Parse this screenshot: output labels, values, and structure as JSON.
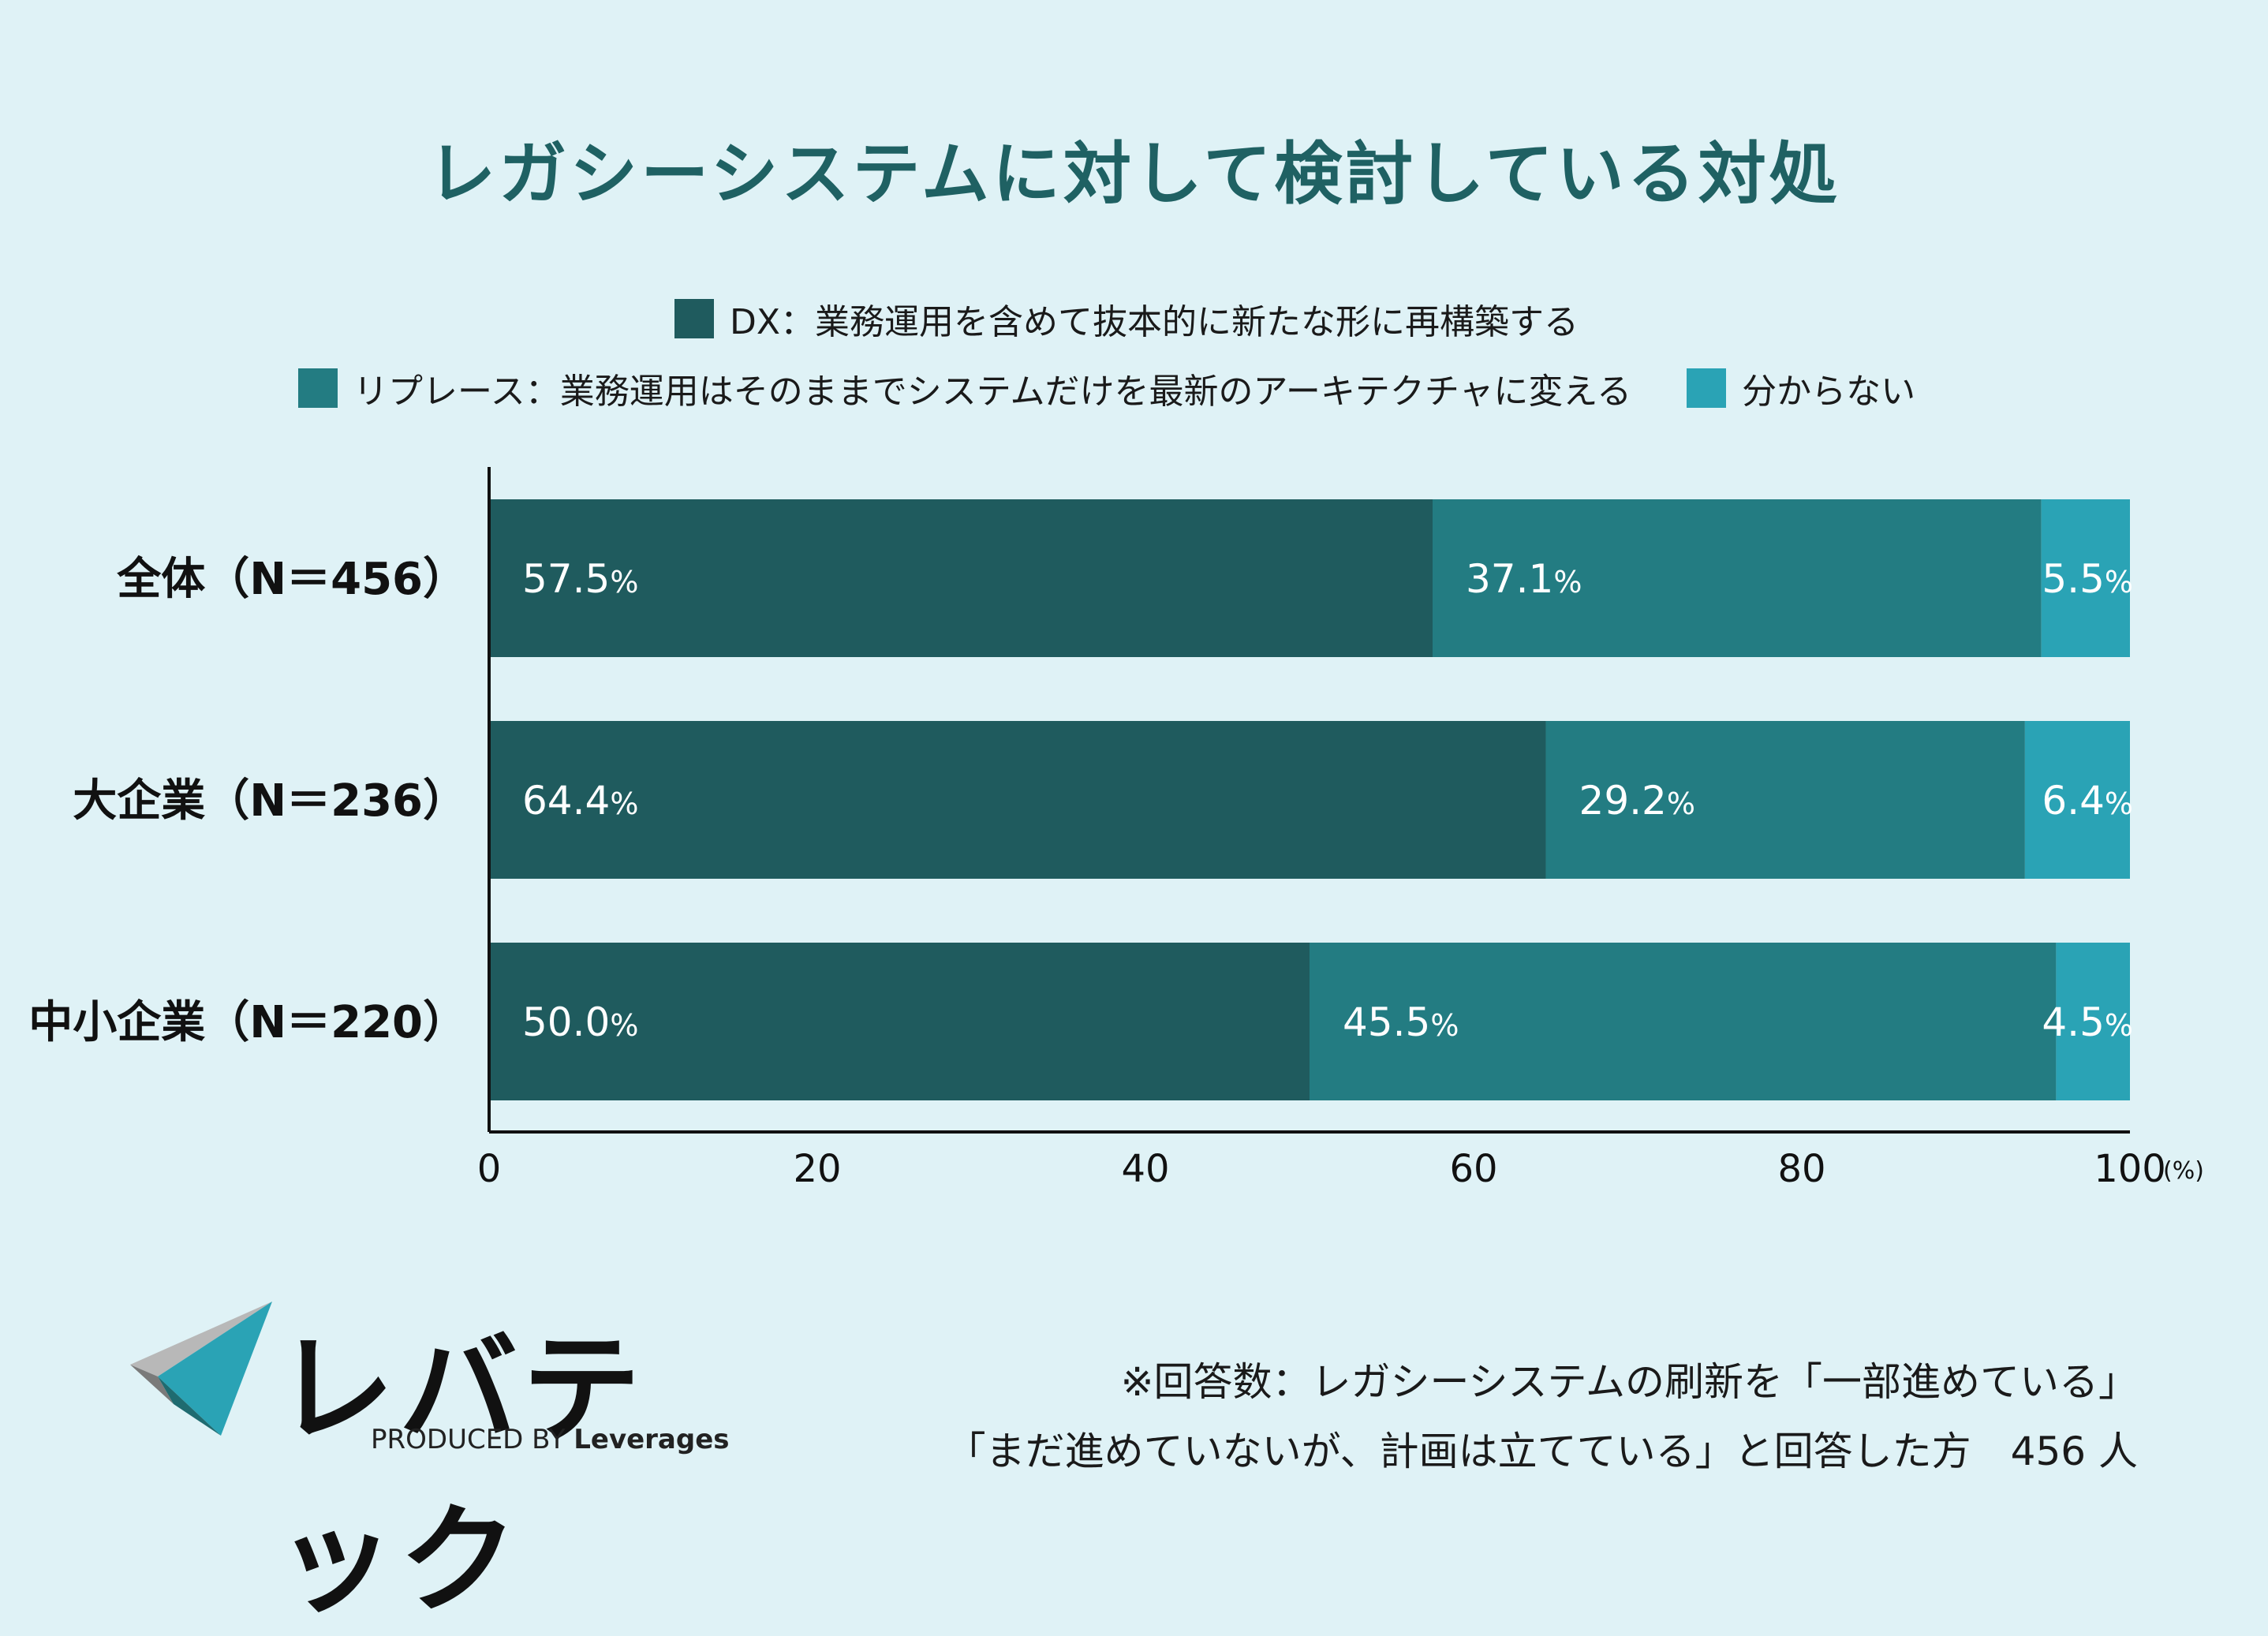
{
  "chart_data": {
    "type": "bar",
    "orientation": "horizontal",
    "stacked": true,
    "title": "レガシーシステムに対して検討している対処",
    "categories": [
      "全体（N＝456）",
      "大企業（N＝236）",
      "中小企業（N＝220）"
    ],
    "series": [
      {
        "name": "DX：業務運用を含めて抜本的に新たな形に再構築する",
        "values": [
          57.5,
          64.4,
          50.0
        ],
        "labels": [
          "57.5",
          "64.4",
          "50.0"
        ],
        "color": "#1f5b5e"
      },
      {
        "name": "リプレース：業務運用はそのままでシステムだけを最新のアーキテクチャに変える",
        "values": [
          37.1,
          29.2,
          45.5
        ],
        "labels": [
          "37.1",
          "29.2",
          "45.5"
        ],
        "color": "#237c82"
      },
      {
        "name": "分からない",
        "values": [
          5.5,
          6.4,
          4.5
        ],
        "labels": [
          "5.5",
          "6.4",
          "4.5"
        ],
        "color": "#2aa3b5"
      }
    ],
    "xlim": [
      0,
      100
    ],
    "xticks": [
      "0",
      "20",
      "40",
      "60",
      "80",
      "100"
    ],
    "x_unit_label": "(%)",
    "value_suffix": "%",
    "legend": "top"
  },
  "logo": {
    "brand": "レバテック",
    "produced_by": "PRODUCED BY",
    "company": "Leverages"
  },
  "footnote": {
    "line1": "※回答数：レガシーシステムの刷新を「一部進めている」",
    "line2": "「まだ進めていないが、計画は立てている」と回答した方　456 人"
  }
}
